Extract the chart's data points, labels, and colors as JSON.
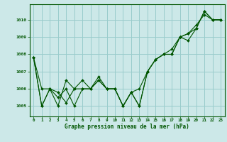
{
  "xlabel": "Graphe pression niveau de la mer (hPa)",
  "bg_color": "#cce8e8",
  "grid_color": "#99cccc",
  "line_color": "#005500",
  "ylim": [
    1004.4,
    1010.9
  ],
  "xlim": [
    -0.5,
    23.5
  ],
  "yticks": [
    1005,
    1006,
    1007,
    1008,
    1009,
    1010
  ],
  "xticks": [
    0,
    1,
    2,
    3,
    4,
    5,
    6,
    7,
    8,
    9,
    10,
    11,
    12,
    13,
    14,
    15,
    16,
    17,
    18,
    19,
    20,
    21,
    22,
    23
  ],
  "series": [
    [
      1007.8,
      1006.0,
      1006.0,
      1005.8,
      1005.2,
      1006.0,
      1006.5,
      1006.0,
      1006.7,
      1006.0,
      1006.0,
      1005.0,
      1005.8,
      1005.0,
      1007.0,
      1007.7,
      1008.0,
      1008.0,
      1009.0,
      1009.2,
      1009.7,
      1010.3,
      1010.0,
      1010.0
    ],
    [
      1007.8,
      1005.0,
      1006.0,
      1005.0,
      1006.5,
      1006.0,
      1006.0,
      1006.0,
      1006.5,
      1006.0,
      1006.0,
      1005.0,
      1005.8,
      1006.0,
      1007.0,
      1007.7,
      1008.0,
      1008.0,
      1009.0,
      1009.2,
      1009.5,
      1010.5,
      1010.0,
      1010.0
    ],
    [
      1007.8,
      1005.0,
      1006.0,
      1005.5,
      1006.0,
      1005.0,
      1006.0,
      1006.0,
      1006.5,
      1006.0,
      1006.0,
      1005.0,
      1005.8,
      1005.0,
      1007.0,
      1007.7,
      1008.0,
      1008.3,
      1009.0,
      1008.8,
      1009.5,
      1010.5,
      1010.0,
      1010.0
    ]
  ]
}
